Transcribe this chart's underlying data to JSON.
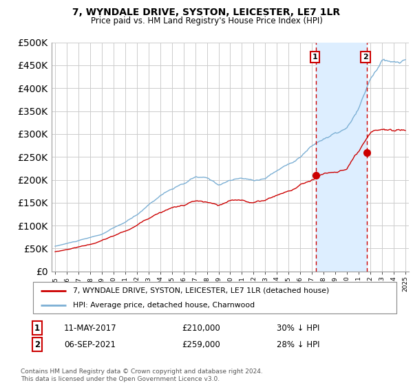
{
  "title": "7, WYNDALE DRIVE, SYSTON, LEICESTER, LE7 1LR",
  "subtitle": "Price paid vs. HM Land Registry's House Price Index (HPI)",
  "legend_line1": "7, WYNDALE DRIVE, SYSTON, LEICESTER, LE7 1LR (detached house)",
  "legend_line2": "HPI: Average price, detached house, Charnwood",
  "footnote": "Contains HM Land Registry data © Crown copyright and database right 2024.\nThis data is licensed under the Open Government Licence v3.0.",
  "annotation1_label": "1",
  "annotation1_date": "11-MAY-2017",
  "annotation1_price": "£210,000",
  "annotation1_hpi": "30% ↓ HPI",
  "annotation2_label": "2",
  "annotation2_date": "06-SEP-2021",
  "annotation2_price": "£259,000",
  "annotation2_hpi": "28% ↓ HPI",
  "hpi_color": "#7bafd4",
  "sale_color": "#cc0000",
  "dashed_line_color": "#cc0000",
  "annotation_box_color": "#cc0000",
  "span_color": "#ddeeff",
  "ylim": [
    0,
    500000
  ],
  "yticks": [
    0,
    50000,
    100000,
    150000,
    200000,
    250000,
    300000,
    350000,
    400000,
    450000,
    500000
  ],
  "sale1_x": 2017.36,
  "sale1_y": 210000,
  "sale2_x": 2021.68,
  "sale2_y": 259000,
  "xlim_left": 1994.7,
  "xlim_right": 2025.3
}
